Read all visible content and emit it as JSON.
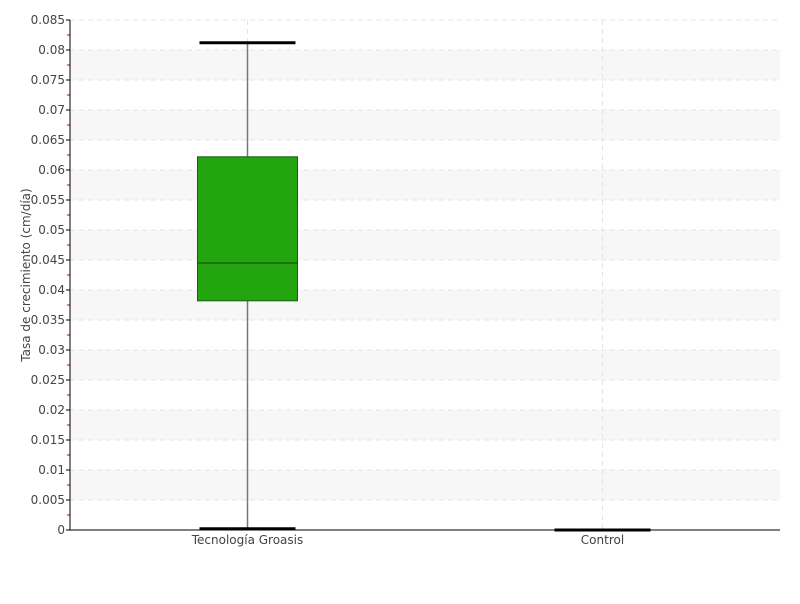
{
  "chart_data": {
    "type": "boxplot",
    "title": "",
    "xlabel": "",
    "ylabel": "Tasa de crecimiento (cm/día)",
    "ylim": [
      0,
      0.085
    ],
    "ytick_step": 0.005,
    "yticks": [
      "0",
      "0.005",
      "0.01",
      "0.015",
      "0.02",
      "0.025",
      "0.03",
      "0.035",
      "0.04",
      "0.045",
      "0.05",
      "0.055",
      "0.06",
      "0.065",
      "0.07",
      "0.075",
      "0.08",
      "0.085"
    ],
    "grid": true,
    "categories": [
      "Tecnología Groasis",
      "Control"
    ],
    "boxes": [
      {
        "category": "Tecnología Groasis",
        "min": 0.0002,
        "q1": 0.0382,
        "median": 0.0445,
        "q3": 0.0622,
        "max": 0.0812,
        "color": "#22a50f"
      },
      {
        "category": "Control",
        "min": 0,
        "q1": 0,
        "median": 0,
        "q3": 0,
        "max": 0,
        "color": "#22a50f"
      }
    ]
  }
}
